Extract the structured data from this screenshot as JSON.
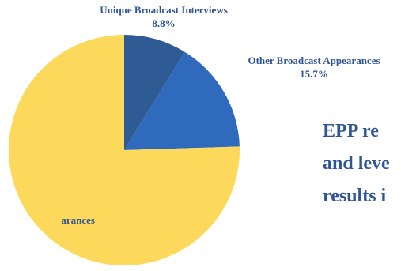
{
  "chart_data": {
    "type": "pie",
    "title": "",
    "slices": [
      {
        "label": "Unique Broadcast Interviews",
        "value": 8.8,
        "display": "8.8%",
        "color": "#2e5b94"
      },
      {
        "label": "Other Broadcast Appearances",
        "value": 15.7,
        "display": "15.7%",
        "color": "#2f6abd"
      },
      {
        "label": "arances",
        "value": 75.5,
        "display": "",
        "color": "#fcd85b"
      }
    ],
    "start_angle_deg": 0,
    "direction": "clockwise",
    "legend": "none"
  },
  "headline": {
    "lines": [
      "EPP re",
      "and leve",
      "results i"
    ]
  },
  "colors": {
    "label_text": "#2f5597"
  }
}
